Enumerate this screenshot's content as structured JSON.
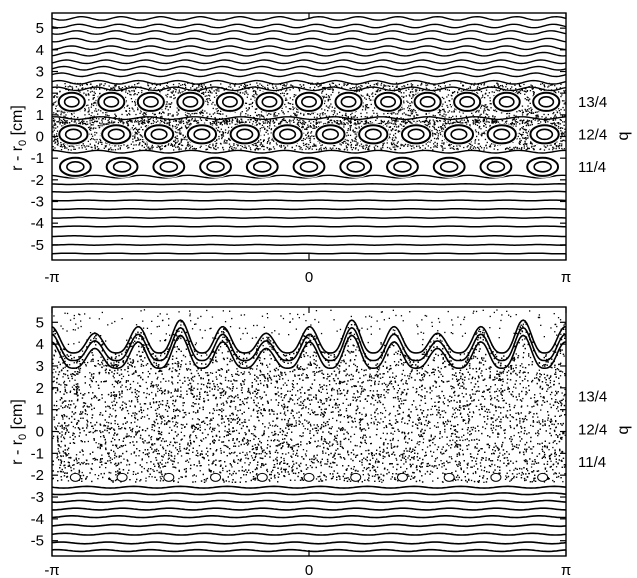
{
  "chart_data": [
    {
      "type": "scatter",
      "panel": "top",
      "ylabel": "r - r",
      "ylabel_subscript": "0",
      "ylabel_unit": "[cm]",
      "xlim": [
        -3.1416,
        3.1416
      ],
      "ylim": [
        -5.7,
        5.7
      ],
      "x_tick_labels": [
        "-π",
        "0",
        "π"
      ],
      "y_ticks": [
        5,
        4,
        3,
        2,
        1,
        0,
        -1,
        -2,
        -3,
        -4,
        -5
      ],
      "y_tick_labels": [
        "5",
        "4",
        "3",
        "2",
        "1",
        "0",
        "-1",
        "-2",
        "-3",
        "-4",
        "-5"
      ],
      "right_axis_label": "q",
      "rational_surfaces": [
        {
          "label": "13/4",
          "r": 1.6,
          "islands": 13
        },
        {
          "label": "12/4",
          "r": 0.1,
          "islands": 12
        },
        {
          "label": "11/4",
          "r": -1.4,
          "islands": 11
        }
      ],
      "kam_surfaces": [
        5.45,
        5.1,
        4.8,
        4.45,
        4.1,
        3.8,
        3.45,
        3.15,
        2.85,
        2.5,
        2.2,
        0.85,
        -0.7,
        -1.85,
        -2.2,
        -2.55,
        -2.95,
        -3.35,
        -3.75,
        -4.15,
        -4.6,
        -5.0,
        -5.4
      ],
      "chaos_layers": [
        {
          "r_min": 0.6,
          "r_max": 2.5
        },
        {
          "r_min": -0.6,
          "r_max": 0.8
        }
      ],
      "grid": false
    },
    {
      "type": "scatter",
      "panel": "bottom",
      "ylabel": "r - r",
      "ylabel_subscript": "0",
      "ylabel_unit": "[cm]",
      "xlim": [
        -3.1416,
        3.1416
      ],
      "ylim": [
        -5.7,
        5.7
      ],
      "x_tick_labels": [
        "-π",
        "0",
        "π"
      ],
      "y_ticks": [
        5,
        4,
        3,
        2,
        1,
        0,
        -1,
        -2,
        -3,
        -4,
        -5
      ],
      "y_tick_labels": [
        "5",
        "4",
        "3",
        "2",
        "1",
        "0",
        "-1",
        "-2",
        "-3",
        "-4",
        "-5"
      ],
      "right_axis_label": "q",
      "rational_surfaces": [
        {
          "label": "13/4",
          "r": 1.6,
          "islands": 13
        },
        {
          "label": "12/4",
          "r": 0.1,
          "islands": 12
        },
        {
          "label": "11/4",
          "r": -1.4,
          "islands": 11
        }
      ],
      "chaotic_region": {
        "r_min": -2.3,
        "r_max": 5.3,
        "peaks": 12
      },
      "small_islands_at_r": -2.1,
      "kam_surfaces": [
        -2.55,
        -2.85,
        -3.2,
        -3.55,
        -3.9,
        -4.3,
        -4.7,
        -5.1,
        -5.45
      ],
      "grid": false
    }
  ]
}
